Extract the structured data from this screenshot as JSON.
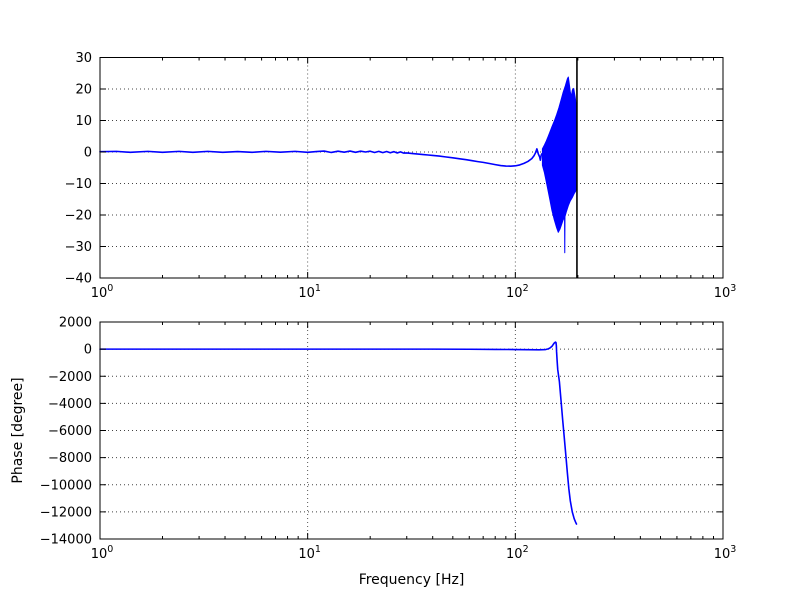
{
  "figure": {
    "background": "#ffffff",
    "accent_color": "#0000ff",
    "grid_color": "#444444",
    "spine_color": "#000000"
  },
  "chart_data": [
    {
      "type": "line",
      "name": "magnitude",
      "title": "",
      "xlabel": "",
      "ylabel": "",
      "xscale": "log",
      "grid": true,
      "legend": "none",
      "xlim": [
        1,
        1000
      ],
      "ylim": [
        -40,
        30
      ],
      "xticks": [
        1,
        10,
        100,
        1000
      ],
      "xtick_labels": [
        [
          "10",
          "0"
        ],
        [
          "10",
          "1"
        ],
        [
          "10",
          "2"
        ],
        [
          "10",
          "3"
        ]
      ],
      "yticks": [
        30,
        20,
        10,
        0,
        -10,
        -20,
        -30,
        -40
      ],
      "ytick_labels": [
        "30",
        "20",
        "10",
        "0",
        "−10",
        "−20",
        "−30",
        "−40"
      ],
      "series": [
        {
          "name": "magnitude-db",
          "color": "#0000ff",
          "points": [
            [
              1,
              0.1
            ],
            [
              1.2,
              0.2
            ],
            [
              1.4,
              -0.1
            ],
            [
              1.7,
              0.2
            ],
            [
              2,
              -0.1
            ],
            [
              2.4,
              0.2
            ],
            [
              2.8,
              -0.1
            ],
            [
              3.3,
              0.2
            ],
            [
              3.9,
              -0.1
            ],
            [
              4.6,
              0.15
            ],
            [
              5.4,
              -0.1
            ],
            [
              6.3,
              0.2
            ],
            [
              7.4,
              -0.05
            ],
            [
              8.7,
              0.2
            ],
            [
              10,
              -0.1
            ],
            [
              11,
              0.15
            ],
            [
              12,
              0.3
            ],
            [
              13,
              -0.15
            ],
            [
              14,
              0.25
            ],
            [
              15,
              -0.05
            ],
            [
              16,
              0.3
            ],
            [
              17,
              -0.1
            ],
            [
              18,
              0.25
            ],
            [
              19,
              0
            ],
            [
              20,
              0.25
            ],
            [
              21,
              -0.15
            ],
            [
              22,
              0.2
            ],
            [
              23,
              -0.2
            ],
            [
              24,
              0.15
            ],
            [
              25,
              -0.25
            ],
            [
              26,
              0.1
            ],
            [
              27,
              -0.3
            ],
            [
              28,
              0.05
            ],
            [
              29,
              -0.35
            ],
            [
              30,
              -0.3
            ],
            [
              32,
              -0.5
            ],
            [
              34,
              -0.65
            ],
            [
              36,
              -0.8
            ],
            [
              38,
              -0.95
            ],
            [
              40,
              -1.1
            ],
            [
              43,
              -1.3
            ],
            [
              46,
              -1.55
            ],
            [
              50,
              -1.85
            ],
            [
              54,
              -2.15
            ],
            [
              58,
              -2.45
            ],
            [
              62,
              -2.75
            ],
            [
              66,
              -3.05
            ],
            [
              70,
              -3.3
            ],
            [
              75,
              -3.65
            ],
            [
              80,
              -4.0
            ],
            [
              85,
              -4.3
            ],
            [
              90,
              -4.45
            ],
            [
              95,
              -4.5
            ],
            [
              100,
              -4.4
            ],
            [
              105,
              -4.1
            ],
            [
              110,
              -3.6
            ],
            [
              115,
              -3.0
            ],
            [
              120,
              -2.1
            ],
            [
              123,
              -1.2
            ],
            [
              125,
              -0.3
            ],
            [
              127,
              1.0
            ],
            [
              128,
              0.2
            ],
            [
              129,
              -0.6
            ],
            [
              131,
              -1.6
            ],
            [
              132,
              -2.6
            ],
            [
              133,
              -1.2
            ],
            [
              134,
              -0.6
            ],
            [
              135,
              -0.9
            ]
          ]
        }
      ],
      "noise_envelope": {
        "color": "#0000ff",
        "upper": [
          [
            135,
            1
          ],
          [
            138,
            2.2
          ],
          [
            141,
            3.5
          ],
          [
            144,
            5
          ],
          [
            147,
            6.5
          ],
          [
            150,
            8
          ],
          [
            154,
            9.8
          ],
          [
            158,
            11.8
          ],
          [
            162,
            14
          ],
          [
            166,
            16.5
          ],
          [
            170,
            19
          ],
          [
            174,
            21
          ],
          [
            178,
            23.2
          ],
          [
            180,
            23.8
          ],
          [
            182,
            21.5
          ],
          [
            184,
            19
          ],
          [
            186,
            17.5
          ],
          [
            188,
            19.5
          ],
          [
            191,
            20.2
          ],
          [
            194,
            17.5
          ],
          [
            197,
            14.5
          ],
          [
            198,
            11
          ]
        ],
        "lower": [
          [
            135,
            -4.2
          ],
          [
            138,
            -6.5
          ],
          [
            141,
            -9.5
          ],
          [
            144,
            -12.5
          ],
          [
            147,
            -15.5
          ],
          [
            150,
            -18.5
          ],
          [
            154,
            -21.5
          ],
          [
            158,
            -24
          ],
          [
            161,
            -25.5
          ],
          [
            164,
            -24.5
          ],
          [
            167,
            -23
          ],
          [
            170,
            -21.5
          ],
          [
            172.6,
            -20.8
          ],
          [
            173,
            -32
          ],
          [
            173.4,
            -20.5
          ],
          [
            176,
            -19
          ],
          [
            180,
            -17
          ],
          [
            184,
            -15.5
          ],
          [
            188,
            -14.5
          ],
          [
            192,
            -13.2
          ],
          [
            195,
            -12.5
          ],
          [
            198,
            -11.5
          ]
        ]
      },
      "vline": {
        "x": 198,
        "color": "#000000"
      }
    },
    {
      "type": "line",
      "name": "phase",
      "title": "",
      "xlabel": "Frequency [Hz]",
      "ylabel": "Phase [degree]",
      "xscale": "log",
      "grid": true,
      "legend": "none",
      "xlim": [
        1,
        1000
      ],
      "ylim": [
        -14000,
        2000
      ],
      "xticks": [
        1,
        10,
        100,
        1000
      ],
      "xtick_labels": [
        [
          "10",
          "0"
        ],
        [
          "10",
          "1"
        ],
        [
          "10",
          "2"
        ],
        [
          "10",
          "3"
        ]
      ],
      "yticks": [
        2000,
        0,
        -2000,
        -4000,
        -6000,
        -8000,
        -10000,
        -12000,
        -14000
      ],
      "ytick_labels": [
        "2000",
        "0",
        "−2000",
        "−4000",
        "−6000",
        "−8000",
        "−10000",
        "−12000",
        "−14000"
      ],
      "series": [
        {
          "name": "phase-degree",
          "color": "#0000ff",
          "points": [
            [
              1,
              0
            ],
            [
              5,
              0
            ],
            [
              10,
              0
            ],
            [
              20,
              0
            ],
            [
              40,
              0
            ],
            [
              60,
              -10
            ],
            [
              80,
              -20
            ],
            [
              100,
              -30
            ],
            [
              115,
              -40
            ],
            [
              130,
              -50
            ],
            [
              140,
              -30
            ],
            [
              144,
              20
            ],
            [
              147,
              90
            ],
            [
              150,
              200
            ],
            [
              152,
              330
            ],
            [
              154,
              450
            ],
            [
              156,
              520
            ],
            [
              157,
              480
            ],
            [
              157.6,
              250
            ],
            [
              158,
              -200
            ],
            [
              159,
              -900
            ],
            [
              160,
              -1500
            ],
            [
              163,
              -2400
            ],
            [
              166,
              -3800
            ],
            [
              169,
              -5200
            ],
            [
              172,
              -6500
            ],
            [
              175,
              -7800
            ],
            [
              178,
              -9100
            ],
            [
              181,
              -10300
            ],
            [
              184,
              -11200
            ],
            [
              188,
              -12000
            ],
            [
              192,
              -12500
            ],
            [
              195,
              -12750
            ],
            [
              197,
              -12900
            ]
          ]
        }
      ]
    }
  ]
}
